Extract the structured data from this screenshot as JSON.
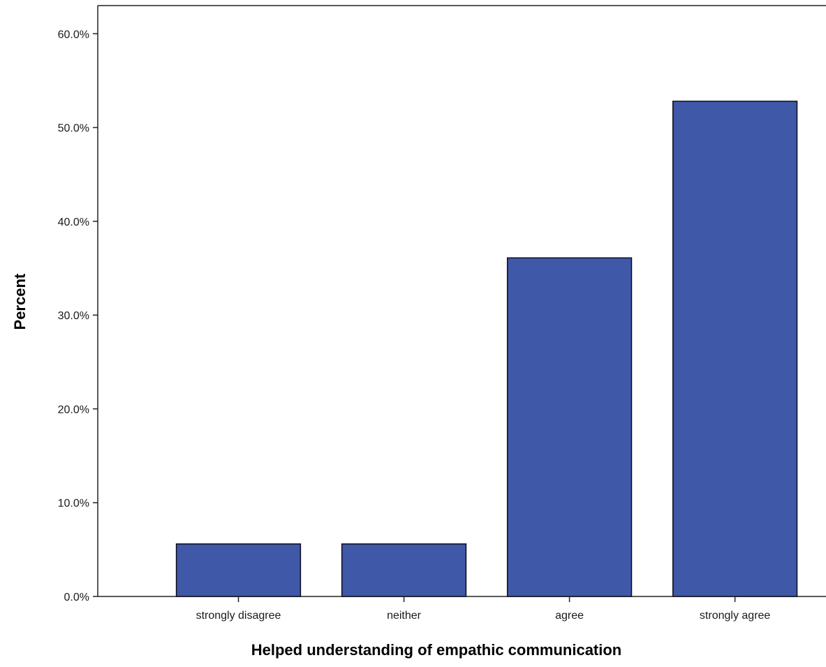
{
  "chart_data": {
    "type": "bar",
    "categories": [
      "strongly disagree",
      "neither",
      "agree",
      "strongly agree"
    ],
    "values": [
      5.6,
      5.6,
      36.1,
      52.8
    ],
    "xlabel": "Helped understanding of empathic communication",
    "ylabel": "Percent",
    "ylim": [
      0,
      63
    ],
    "yticks": [
      0,
      10,
      20,
      30,
      40,
      50,
      60
    ],
    "ytick_labels": [
      "0.0%",
      "10.0%",
      "20.0%",
      "30.0%",
      "40.0%",
      "50.0%",
      "60.0%"
    ],
    "grid": false,
    "legend": "none",
    "colors": {
      "bar_fill": "#3f58a8",
      "bar_stroke": "#0d0d1a",
      "axis": "#222222"
    }
  }
}
